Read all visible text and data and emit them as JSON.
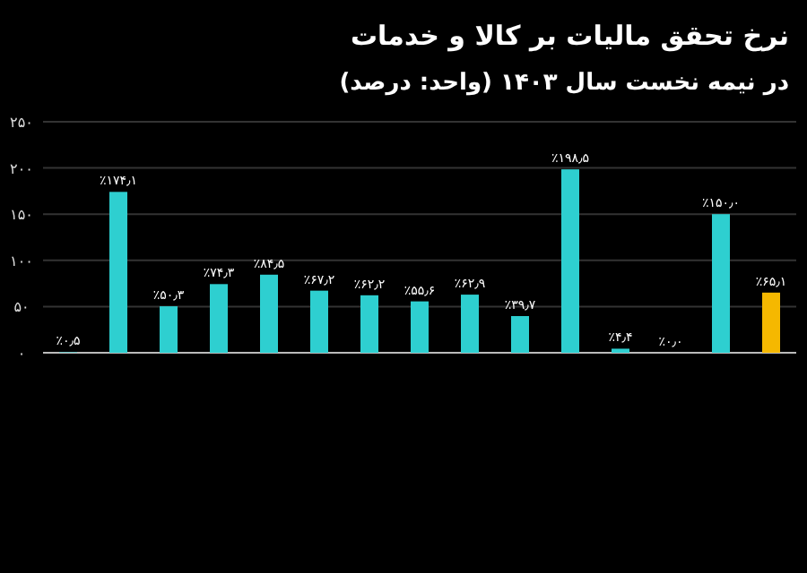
{
  "chart_data": {
    "type": "bar",
    "title": "نرخ تحقق مالیات بر کالا و خدمات",
    "subtitle": "در نیمه نخست سال ۱۴۰۳ (واحد: درصد)",
    "categories": [
      null,
      null,
      null,
      null,
      null,
      null,
      null,
      null,
      null,
      null,
      null,
      null,
      null,
      null,
      null
    ],
    "values": [
      0.5,
      174.1,
      50.3,
      74.3,
      84.5,
      67.2,
      62.2,
      55.6,
      62.9,
      39.7,
      198.5,
      4.4,
      0.0,
      150.0,
      65.1
    ],
    "value_labels": [
      "٪۰٫۵",
      "٪۱۷۴٫۱",
      "٪۵۰٫۳",
      "٪۷۴٫۳",
      "٪۸۴٫۵",
      "٪۶۷٫۲",
      "٪۶۲٫۲",
      "٪۵۵٫۶",
      "٪۶۲٫۹",
      "٪۳۹٫۷",
      "٪۱۹۸٫۵",
      "٪۴٫۴",
      "٪۰٫۰",
      "٪۱۵۰٫۰",
      "٪۶۵٫۱"
    ],
    "colors": [
      "#2ecfd0",
      "#2ecfd0",
      "#2ecfd0",
      "#2ecfd0",
      "#2ecfd0",
      "#2ecfd0",
      "#2ecfd0",
      "#2ecfd0",
      "#2ecfd0",
      "#2ecfd0",
      "#2ecfd0",
      "#2ecfd0",
      "#2ecfd0",
      "#2ecfd0",
      "#f5b800"
    ],
    "ylim": [
      0,
      250
    ],
    "yticks": [
      {
        "value": 0,
        "label": "۰"
      },
      {
        "value": 50,
        "label": "۵۰"
      },
      {
        "value": 100,
        "label": "۱۰۰"
      },
      {
        "value": 150,
        "label": "۱۵۰"
      },
      {
        "value": 200,
        "label": "۲۰۰"
      },
      {
        "value": 250,
        "label": "۲۵۰"
      }
    ],
    "grid": "y"
  }
}
